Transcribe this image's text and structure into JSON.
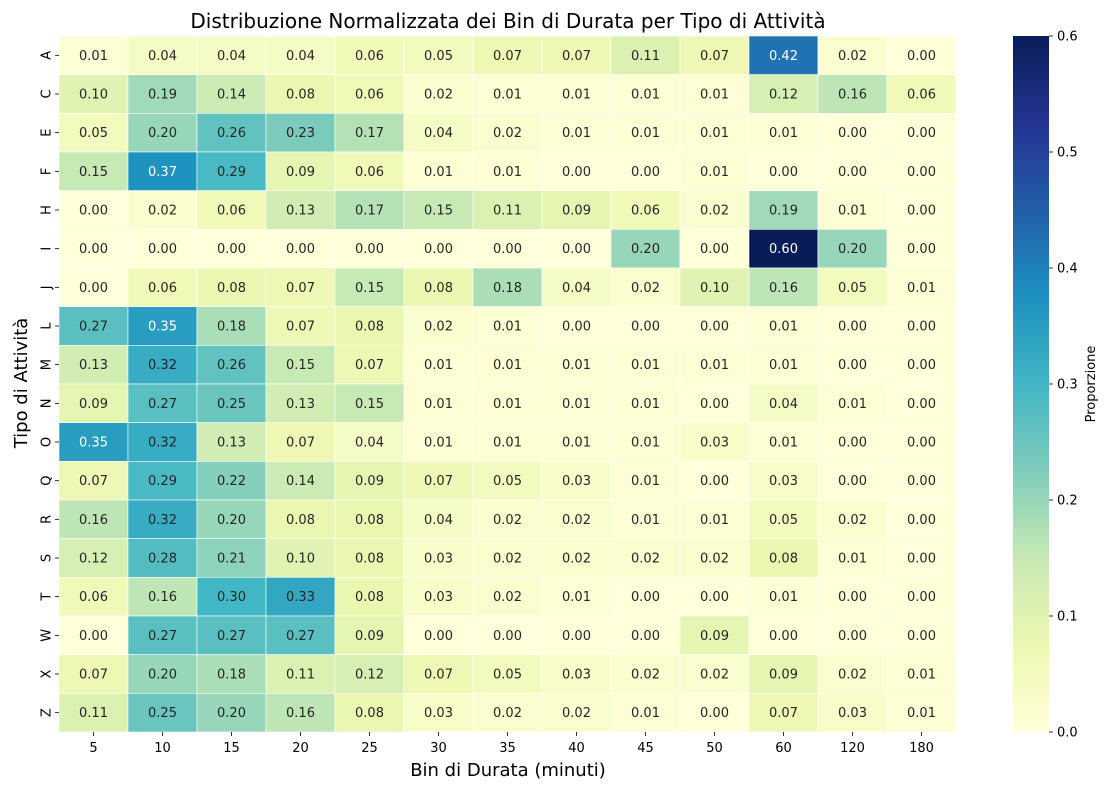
{
  "chart_data": {
    "type": "heatmap",
    "title": "Distribuzione Normalizzata dei Bin di Durata per Tipo di Attività",
    "xlabel": "Bin di Durata (minuti)",
    "ylabel": "Tipo di Attività",
    "x_categories": [
      "5",
      "10",
      "15",
      "20",
      "25",
      "30",
      "35",
      "40",
      "45",
      "50",
      "60",
      "120",
      "180"
    ],
    "y_categories": [
      "A",
      "C",
      "E",
      "F",
      "H",
      "I",
      "J",
      "L",
      "M",
      "N",
      "O",
      "Q",
      "R",
      "S",
      "T",
      "W",
      "X",
      "Z"
    ],
    "values": [
      [
        0.01,
        0.04,
        0.04,
        0.04,
        0.06,
        0.05,
        0.07,
        0.07,
        0.11,
        0.07,
        0.42,
        0.02,
        0.0
      ],
      [
        0.1,
        0.19,
        0.14,
        0.08,
        0.06,
        0.02,
        0.01,
        0.01,
        0.01,
        0.01,
        0.12,
        0.16,
        0.06
      ],
      [
        0.05,
        0.2,
        0.26,
        0.23,
        0.17,
        0.04,
        0.02,
        0.01,
        0.01,
        0.01,
        0.01,
        0.0,
        0.0
      ],
      [
        0.15,
        0.37,
        0.29,
        0.09,
        0.06,
        0.01,
        0.01,
        0.0,
        0.0,
        0.01,
        0.0,
        0.0,
        0.0
      ],
      [
        0.0,
        0.02,
        0.06,
        0.13,
        0.17,
        0.15,
        0.11,
        0.09,
        0.06,
        0.02,
        0.19,
        0.01,
        0.0
      ],
      [
        0.0,
        0.0,
        0.0,
        0.0,
        0.0,
        0.0,
        0.0,
        0.0,
        0.2,
        0.0,
        0.6,
        0.2,
        0.0
      ],
      [
        0.0,
        0.06,
        0.08,
        0.07,
        0.15,
        0.08,
        0.18,
        0.04,
        0.02,
        0.1,
        0.16,
        0.05,
        0.01
      ],
      [
        0.27,
        0.35,
        0.18,
        0.07,
        0.08,
        0.02,
        0.01,
        0.0,
        0.0,
        0.0,
        0.01,
        0.0,
        0.0
      ],
      [
        0.13,
        0.32,
        0.26,
        0.15,
        0.07,
        0.01,
        0.01,
        0.01,
        0.01,
        0.01,
        0.01,
        0.0,
        0.0
      ],
      [
        0.09,
        0.27,
        0.25,
        0.13,
        0.15,
        0.01,
        0.01,
        0.01,
        0.01,
        0.0,
        0.04,
        0.01,
        0.0
      ],
      [
        0.35,
        0.32,
        0.13,
        0.07,
        0.04,
        0.01,
        0.01,
        0.01,
        0.01,
        0.03,
        0.01,
        0.0,
        0.0
      ],
      [
        0.07,
        0.29,
        0.22,
        0.14,
        0.09,
        0.07,
        0.05,
        0.03,
        0.01,
        0.0,
        0.03,
        0.0,
        0.0
      ],
      [
        0.16,
        0.32,
        0.2,
        0.08,
        0.08,
        0.04,
        0.02,
        0.02,
        0.01,
        0.01,
        0.05,
        0.02,
        0.0
      ],
      [
        0.12,
        0.28,
        0.21,
        0.1,
        0.08,
        0.03,
        0.02,
        0.02,
        0.02,
        0.02,
        0.08,
        0.01,
        0.0
      ],
      [
        0.06,
        0.16,
        0.3,
        0.33,
        0.08,
        0.03,
        0.02,
        0.01,
        0.0,
        0.0,
        0.01,
        0.0,
        0.0
      ],
      [
        0.0,
        0.27,
        0.27,
        0.27,
        0.09,
        0.0,
        0.0,
        0.0,
        0.0,
        0.09,
        0.0,
        0.0,
        0.0
      ],
      [
        0.07,
        0.2,
        0.18,
        0.11,
        0.12,
        0.07,
        0.05,
        0.03,
        0.02,
        0.02,
        0.09,
        0.02,
        0.01
      ],
      [
        0.11,
        0.25,
        0.2,
        0.16,
        0.08,
        0.03,
        0.02,
        0.02,
        0.01,
        0.0,
        0.07,
        0.03,
        0.01
      ]
    ],
    "value_format": "2 decimals",
    "vmin": 0.0,
    "vmax": 0.6,
    "colormap": "YlGnBu",
    "colorbar": {
      "label": "Proporzione",
      "ticks": [
        "0.0",
        "0.1",
        "0.2",
        "0.3",
        "0.4",
        "0.5",
        "0.6"
      ]
    },
    "colors": {
      "cell_border": "#ffffff",
      "text_dark": "#262626",
      "text_light": "#ffffff"
    }
  }
}
